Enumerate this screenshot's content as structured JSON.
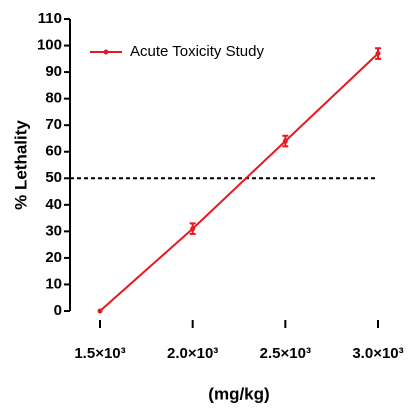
{
  "chart_data": {
    "type": "line",
    "x_label": "(mg/kg)",
    "y_label": "% Lethality",
    "x": [
      1500,
      2000,
      2500,
      3000
    ],
    "series": [
      {
        "name": "Acute Toxicity Study",
        "color": "#e8191f",
        "values": [
          0,
          31,
          64,
          97
        ],
        "errors": [
          0,
          2,
          2,
          2
        ]
      }
    ],
    "xlim": [
      1500,
      3000
    ],
    "xticks": [
      {
        "value": 1500,
        "label": "1.5×10³"
      },
      {
        "value": 2000,
        "label": "2.0×10³"
      },
      {
        "value": 2500,
        "label": "2.5×10³"
      },
      {
        "value": 3000,
        "label": "3.0×10³"
      }
    ],
    "ylim": [
      0,
      110
    ],
    "yticks": [
      0,
      10,
      20,
      30,
      40,
      50,
      60,
      70,
      80,
      90,
      100,
      110
    ],
    "reference_line": {
      "value": 50,
      "style": "dashed"
    },
    "legend": "upper left",
    "grid": false
  }
}
